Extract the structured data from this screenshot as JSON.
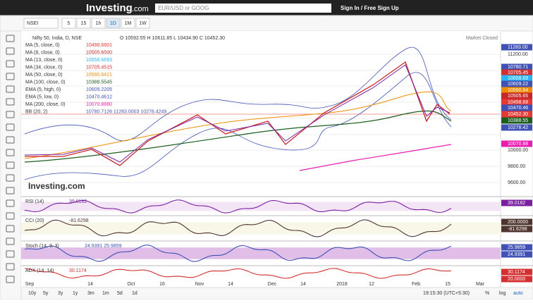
{
  "header": {
    "logo": "Investing",
    "logo_suffix": ".com",
    "search_placeholder": "EUR/USD or GOOG",
    "sign_in": "Sign In / Free Sign Up"
  },
  "toolbar": {
    "symbol": "NSEI",
    "intervals": [
      "5",
      "15",
      "1h",
      "1D",
      "1M",
      "1W"
    ],
    "active_interval": "1D"
  },
  "legend": {
    "title": "Nifty 50, India, D, NSE",
    "ohlc": "O 10592.55 H 10611.85 L 10434.90 C 10452.30",
    "studies": [
      {
        "name": "MA (5, close, 0)",
        "value": "10498.6801",
        "color": "#e53935"
      },
      {
        "name": "MA (8, close, 0)",
        "value": "10505.6500",
        "color": "#c62828"
      },
      {
        "name": "MA (13, close, 0)",
        "value": "10658.6693",
        "color": "#29b6f6"
      },
      {
        "name": "MA (34, close, 0)",
        "value": "10705.4515",
        "color": "#d32f2f"
      },
      {
        "name": "MA (50, close, 0)",
        "value": "10590.6421",
        "color": "#ef8c00"
      },
      {
        "name": "MA (100, close, 0)",
        "value": "10388.5545",
        "color": "#1b5e20"
      },
      {
        "name": "EMA (5, high, 0)",
        "value": "10609.2205",
        "color": "#3f51b5"
      },
      {
        "name": "EMA (5, low, 0)",
        "value": "10470.4612",
        "color": "#3f51b5"
      },
      {
        "name": "MA (200, close, 0)",
        "value": "10070.8880",
        "color": "#e91eb0"
      },
      {
        "name": "BB (20, 2)",
        "value": "10780.7126  11283.0003  10278.4249",
        "color": "#3f51b5"
      }
    ]
  },
  "market_status": "Market Closed",
  "watermark": "Investing.com",
  "price_axis": [
    {
      "label": "11283.00",
      "color": "#3f51b5"
    },
    {
      "label": "11200.00",
      "color": ""
    },
    {
      "label": "10780.71",
      "color": "#3f51b5"
    },
    {
      "label": "10705.45",
      "color": "#d32f2f"
    },
    {
      "label": "10658.69",
      "color": "#29b6f6"
    },
    {
      "label": "10609.22",
      "color": "#3f51b5"
    },
    {
      "label": "10590.64",
      "color": "#ef8c00"
    },
    {
      "label": "10505.65",
      "color": "#c62828"
    },
    {
      "label": "10498.68",
      "color": "#e53935"
    },
    {
      "label": "10470.46",
      "color": "#3f51b5"
    },
    {
      "label": "10452.30",
      "color": "#e53935"
    },
    {
      "label": "10388.55",
      "color": "#1b5e20"
    },
    {
      "label": "10278.42",
      "color": "#3f51b5"
    },
    {
      "label": "10070.88",
      "color": "#e91eb0"
    },
    {
      "label": "10000.00",
      "color": ""
    },
    {
      "label": "9800.00",
      "color": ""
    },
    {
      "label": "9600.00",
      "color": ""
    }
  ],
  "indicators": [
    {
      "name": "RSI (14)",
      "value": "39.0182",
      "axis": [
        "39.0182"
      ]
    },
    {
      "name": "CCI (20)",
      "value": "-81.6298",
      "axis": [
        "200.0000",
        "-81.6298"
      ]
    },
    {
      "name": "Stoch (14, 3, 3)",
      "value": "24.9391  25.9859",
      "axis": [
        "25.9859",
        "24.9391"
      ]
    },
    {
      "name": "ADX (14, 14)",
      "value": "30.1174",
      "axis": [
        "30.1174",
        "20.0000"
      ]
    }
  ],
  "x_axis": [
    "Sep",
    "14",
    "Oct",
    "16",
    "Nov",
    "14",
    "Dec",
    "14",
    "2018",
    "12",
    "Feb",
    "15",
    "Mar"
  ],
  "footer": {
    "ranges": [
      "10y",
      "5y",
      "3y",
      "1y",
      "3m",
      "1m",
      "5d",
      "1d"
    ],
    "time": "19:15:30 (UTC+5:30)",
    "options": [
      "%",
      "log",
      "auto"
    ]
  }
}
